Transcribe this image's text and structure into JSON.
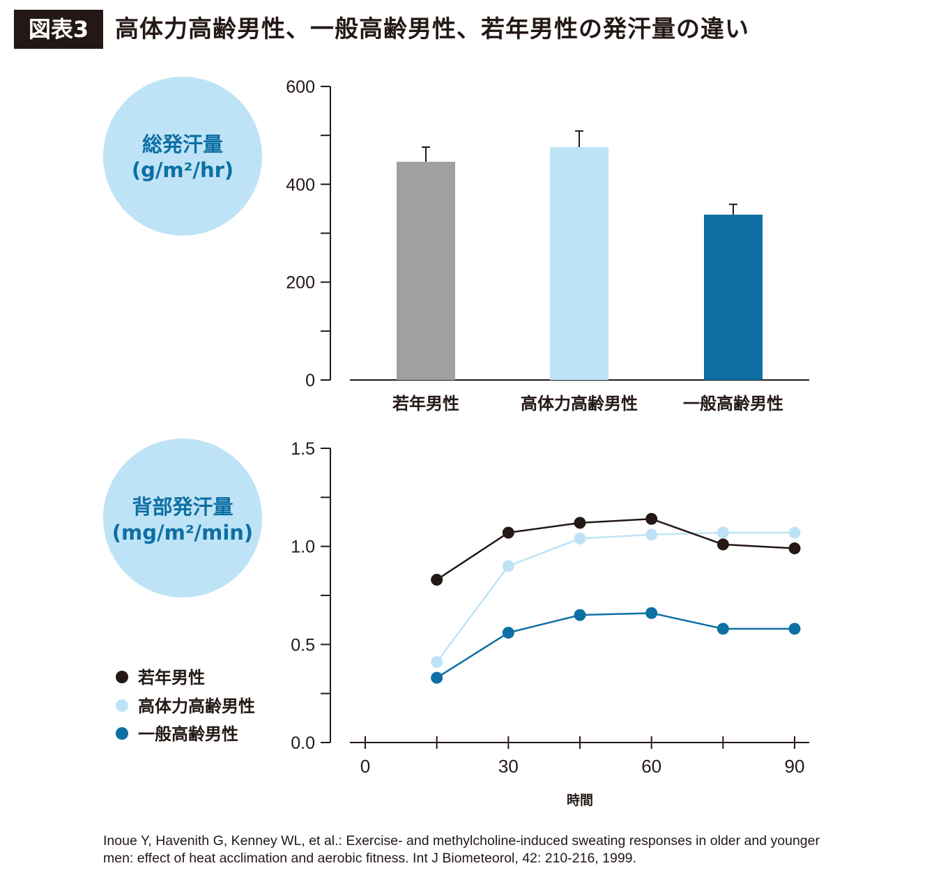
{
  "header": {
    "badge": "図表3",
    "title": "高体力高齢男性、一般高齢男性、若年男性の発汗量の違い"
  },
  "colors": {
    "young": "#231815",
    "fit_elderly": "#bfe3f6",
    "general_elderly": "#0d6fa3",
    "young_bar": "#a0a0a0",
    "circle_fill": "#bfe3f6",
    "label_blue": "#0d6fa3"
  },
  "chart_data": [
    {
      "type": "bar",
      "ylabel_lines": [
        "総発汗量",
        "(g/m²/hr)"
      ],
      "categories": [
        "若年男性",
        "高体力高齢男性",
        "一般高齢男性"
      ],
      "values": [
        446,
        476,
        338
      ],
      "error_upper": [
        476,
        509,
        359
      ],
      "ylim": [
        0,
        600
      ],
      "yticks": [
        0,
        200,
        400,
        600
      ],
      "ytick_labels": [
        "0",
        "200",
        "400",
        "600"
      ],
      "grid": false
    },
    {
      "type": "line",
      "ylabel_lines": [
        "背部発汗量",
        "(mg/m²/min)"
      ],
      "xlabel": "時間",
      "x": [
        15,
        30,
        45,
        60,
        75,
        90
      ],
      "xlim": [
        0,
        90
      ],
      "xticks": [
        0,
        15,
        30,
        45,
        60,
        75,
        90
      ],
      "xtick_labels": [
        "0",
        "30",
        "60",
        "90"
      ],
      "xtick_label_values": [
        0,
        30,
        60,
        90
      ],
      "ylim": [
        0,
        1.5
      ],
      "yticks": [
        0,
        0.5,
        1.0,
        1.5
      ],
      "ytick_labels": [
        "0.0",
        "0.5",
        "1.0",
        "1.5"
      ],
      "grid": false,
      "legend_position": "left",
      "series": [
        {
          "name": "若年男性",
          "values": [
            0.83,
            1.07,
            1.12,
            1.14,
            1.01,
            0.99
          ]
        },
        {
          "name": "高体力高齢男性",
          "values": [
            0.41,
            0.9,
            1.04,
            1.06,
            1.07,
            1.07
          ]
        },
        {
          "name": "一般高齢男性",
          "values": [
            0.33,
            0.56,
            0.65,
            0.66,
            0.58,
            0.58
          ]
        }
      ]
    }
  ],
  "citation": "Inoue Y, Havenith G, Kenney WL, et al.: Exercise- and methylcholine-induced sweating responses in older and younger men: effect of heat acclimation and aerobic fitness. Int J Biometeorol, 42: 210-216, 1999."
}
